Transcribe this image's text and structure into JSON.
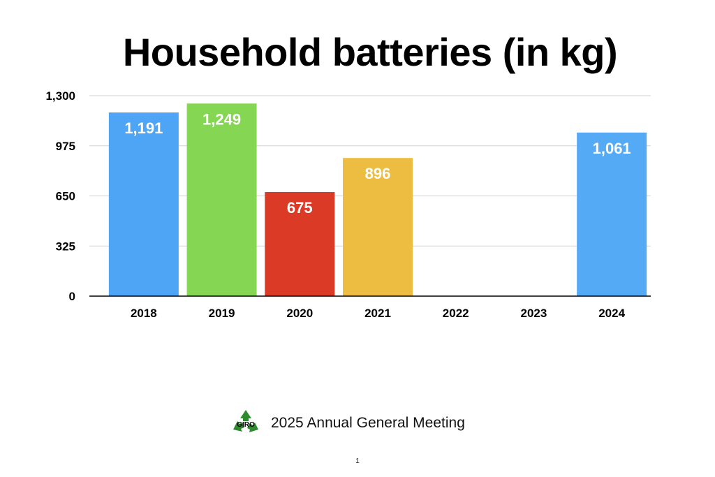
{
  "chart_data": {
    "type": "bar",
    "title": "Household batteries (in kg)",
    "categories": [
      "2018",
      "2019",
      "2020",
      "2021",
      "2022",
      "2023",
      "2024"
    ],
    "values": [
      1191,
      1249,
      675,
      896,
      null,
      null,
      1061
    ],
    "data_labels": [
      "1,191",
      "1,249",
      "675",
      "896",
      "",
      "",
      "1,061"
    ],
    "colors": [
      "#4ea5f5",
      "#84d653",
      "#db3b26",
      "#edbd42",
      null,
      null,
      "#55aaf5"
    ],
    "y_ticks": [
      0,
      325,
      650,
      975,
      1300
    ],
    "y_tick_labels": [
      "0",
      "325",
      "650",
      "975",
      "1,300"
    ],
    "ylim": [
      0,
      1300
    ],
    "grid": true,
    "legend": "none"
  },
  "footer": {
    "logo_text": "GIRO",
    "logo_icon": "recycle-icon",
    "meeting_label": "2025 Annual General Meeting",
    "page_number": "1"
  }
}
